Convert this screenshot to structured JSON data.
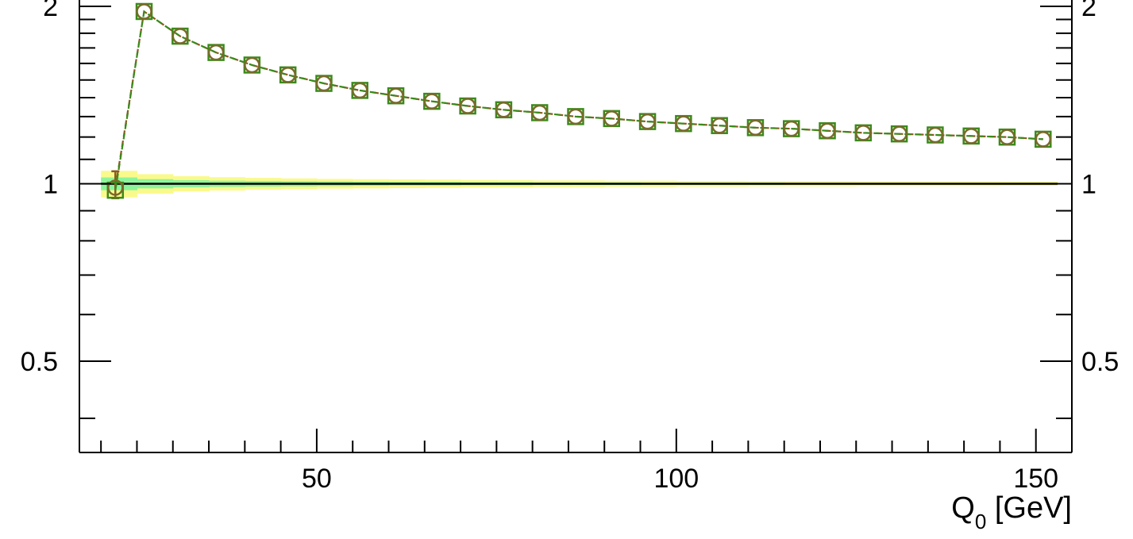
{
  "chart_data": {
    "type": "line",
    "title": "",
    "xlabel_main": "Q",
    "xlabel_sub": "0",
    "xlabel_unit": " [GeV]",
    "ylabel": "",
    "xlim": [
      17,
      155
    ],
    "ylim": [
      0.35,
      2.05
    ],
    "yscale": "log",
    "x_ticks": [
      50,
      100,
      150
    ],
    "x_tick_labels": [
      "50",
      "100",
      "150"
    ],
    "y_ticks": [
      0.5,
      1,
      2
    ],
    "y_tick_labels": [
      "0.5",
      "1",
      "2"
    ],
    "y_ticks_right_labels": [
      "0.5",
      "1",
      "2"
    ],
    "grid": false,
    "reference_line": 1.0,
    "colors": {
      "series_line": "#8b5a1f",
      "circle_marker": "#7a6a2a",
      "square_marker": "#3a8a1a",
      "band_inner": "#8cf59a",
      "band_outer": "#fafa8c",
      "reference": "#000000"
    },
    "bands": {
      "x_edges": [
        20,
        25,
        30,
        35,
        40,
        45,
        50,
        55,
        60,
        65,
        70,
        75,
        80,
        85,
        90,
        95,
        100,
        105,
        110,
        115,
        120,
        125,
        130,
        135,
        140,
        145,
        150,
        153
      ],
      "inner_lo": [
        0.975,
        0.982,
        0.986,
        0.988,
        0.989,
        0.99,
        0.991,
        0.992,
        0.993,
        0.993,
        0.994,
        0.994,
        0.995,
        0.995,
        0.995,
        0.996,
        0.996,
        0.996,
        0.996,
        0.997,
        0.997,
        0.997,
        0.997,
        0.997,
        0.997,
        0.998,
        0.998
      ],
      "inner_hi": [
        1.025,
        1.018,
        1.014,
        1.012,
        1.011,
        1.01,
        1.009,
        1.008,
        1.007,
        1.007,
        1.006,
        1.006,
        1.005,
        1.005,
        1.005,
        1.004,
        1.004,
        1.004,
        1.004,
        1.003,
        1.003,
        1.003,
        1.003,
        1.003,
        1.003,
        1.002,
        1.002
      ],
      "outer_lo": [
        0.948,
        0.962,
        0.97,
        0.974,
        0.977,
        0.979,
        0.981,
        0.982,
        0.983,
        0.984,
        0.985,
        0.986,
        0.987,
        0.987,
        0.988,
        0.988,
        0.989,
        0.989,
        0.99,
        0.99,
        0.99,
        0.991,
        0.991,
        0.991,
        0.991,
        0.992,
        0.992
      ],
      "outer_hi": [
        1.052,
        1.038,
        1.03,
        1.026,
        1.023,
        1.021,
        1.019,
        1.018,
        1.017,
        1.016,
        1.015,
        1.014,
        1.013,
        1.013,
        1.012,
        1.012,
        1.011,
        1.011,
        1.01,
        1.01,
        1.01,
        1.009,
        1.009,
        1.009,
        1.009,
        1.008,
        1.008
      ]
    },
    "series": [
      {
        "marker": "circle",
        "x": [
          22,
          26,
          31,
          36,
          41,
          46,
          51,
          56,
          61,
          66,
          71,
          76,
          81,
          86,
          91,
          96,
          101,
          106,
          111,
          116,
          121,
          126,
          131,
          136,
          141,
          146,
          151
        ],
        "values": [
          0.985,
          1.96,
          1.78,
          1.67,
          1.59,
          1.53,
          1.48,
          1.44,
          1.41,
          1.38,
          1.355,
          1.335,
          1.32,
          1.3,
          1.29,
          1.275,
          1.265,
          1.255,
          1.245,
          1.24,
          1.23,
          1.22,
          1.215,
          1.21,
          1.205,
          1.2,
          1.19
        ]
      },
      {
        "marker": "square",
        "x": [
          22,
          26,
          31,
          36,
          41,
          46,
          51,
          56,
          61,
          66,
          71,
          76,
          81,
          86,
          91,
          96,
          101,
          106,
          111,
          116,
          121,
          126,
          131,
          136,
          141,
          146,
          151
        ],
        "values": [
          0.975,
          1.96,
          1.78,
          1.67,
          1.59,
          1.53,
          1.48,
          1.44,
          1.41,
          1.38,
          1.355,
          1.335,
          1.32,
          1.3,
          1.29,
          1.275,
          1.265,
          1.255,
          1.245,
          1.24,
          1.23,
          1.22,
          1.215,
          1.21,
          1.205,
          1.2,
          1.19
        ]
      }
    ],
    "error_bar": {
      "x": 22,
      "lo": 0.945,
      "hi": 1.05
    }
  }
}
